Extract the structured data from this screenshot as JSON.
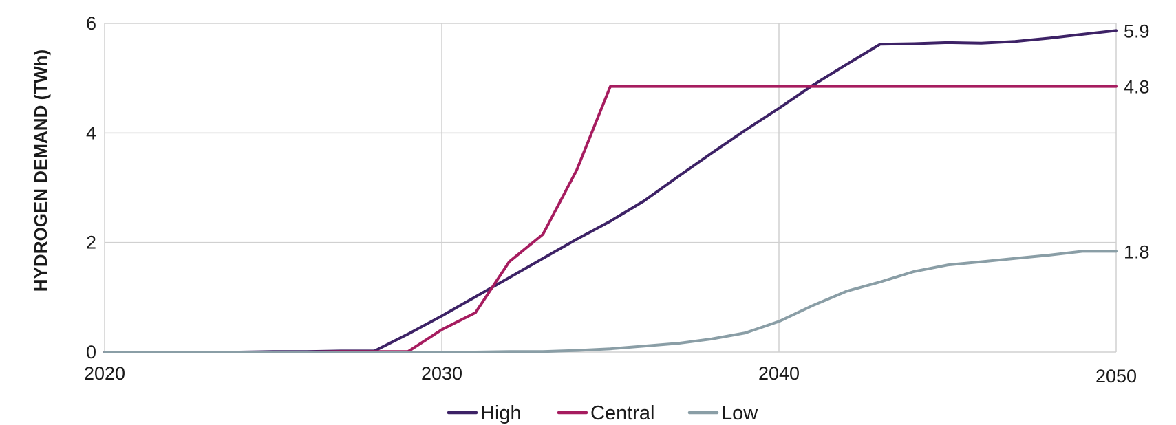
{
  "chart_data": {
    "type": "line",
    "title": "",
    "xlabel": "",
    "ylabel": "HYDROGEN DEMAND (TWh)",
    "xlim": [
      2020,
      2050
    ],
    "ylim": [
      0,
      6
    ],
    "x_ticks": [
      "2020",
      "2030",
      "2040",
      "2050"
    ],
    "y_ticks": [
      "0",
      "2",
      "4",
      "6"
    ],
    "grid": true,
    "legend_position": "bottom-center",
    "x": [
      2020,
      2021,
      2022,
      2023,
      2024,
      2025,
      2026,
      2027,
      2028,
      2029,
      2030,
      2031,
      2032,
      2033,
      2034,
      2035,
      2036,
      2037,
      2038,
      2039,
      2040,
      2041,
      2042,
      2043,
      2044,
      2045,
      2046,
      2047,
      2048,
      2049,
      2050
    ],
    "series": [
      {
        "name": "High",
        "color": "#3d2266",
        "values": [
          0,
          0,
          0,
          0,
          0,
          0.01,
          0.01,
          0.02,
          0.02,
          0.33,
          0.66,
          1.01,
          1.36,
          1.71,
          2.06,
          2.39,
          2.76,
          3.2,
          3.63,
          4.05,
          4.45,
          4.87,
          5.25,
          5.62,
          5.63,
          5.65,
          5.64,
          5.67,
          5.73,
          5.8,
          5.87
        ]
      },
      {
        "name": "Central",
        "color": "#a61c5f",
        "values": [
          0,
          0,
          0,
          0,
          0,
          0,
          0,
          0.01,
          0.01,
          0.01,
          0.41,
          0.72,
          1.65,
          2.15,
          3.32,
          4.85,
          4.85,
          4.85,
          4.85,
          4.85,
          4.85,
          4.85,
          4.85,
          4.85,
          4.85,
          4.85,
          4.85,
          4.85,
          4.85,
          4.85,
          4.85
        ]
      },
      {
        "name": "Low",
        "color": "#8a9ea6",
        "values": [
          0,
          0,
          0,
          0,
          0,
          0,
          0,
          0,
          0,
          0,
          0,
          0,
          0.01,
          0.01,
          0.03,
          0.06,
          0.11,
          0.16,
          0.24,
          0.35,
          0.56,
          0.85,
          1.11,
          1.28,
          1.47,
          1.59,
          1.65,
          1.71,
          1.77,
          1.84,
          1.84
        ]
      }
    ],
    "end_labels": [
      {
        "series": "High",
        "text": "5.9"
      },
      {
        "series": "Central",
        "text": "4.8"
      },
      {
        "series": "Low",
        "text": "1.8"
      }
    ]
  }
}
